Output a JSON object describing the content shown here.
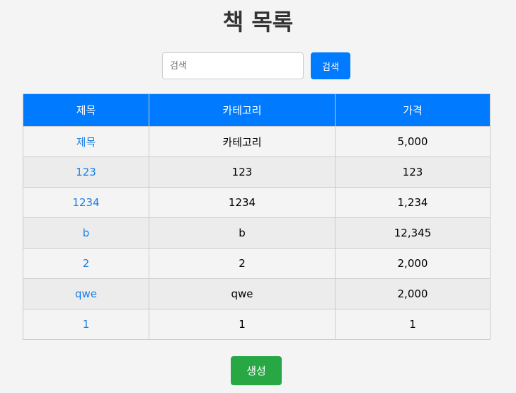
{
  "page": {
    "title": "책 목록"
  },
  "search": {
    "placeholder": "검색",
    "value": "",
    "button_label": "검색"
  },
  "table": {
    "headers": [
      "제목",
      "카테고리",
      "가격"
    ],
    "rows": [
      {
        "title": "제목",
        "category": "카테고리",
        "price": "5,000"
      },
      {
        "title": "123",
        "category": "123",
        "price": "123"
      },
      {
        "title": "1234",
        "category": "1234",
        "price": "1,234"
      },
      {
        "title": "b",
        "category": "b",
        "price": "12,345"
      },
      {
        "title": "2",
        "category": "2",
        "price": "2,000"
      },
      {
        "title": "qwe",
        "category": "qwe",
        "price": "2,000"
      },
      {
        "title": "1",
        "category": "1",
        "price": "1"
      }
    ]
  },
  "actions": {
    "create_label": "생성"
  },
  "colors": {
    "primary": "#007bff",
    "success": "#28a745",
    "link": "#1a7fe6",
    "background": "#f4f4f4"
  }
}
